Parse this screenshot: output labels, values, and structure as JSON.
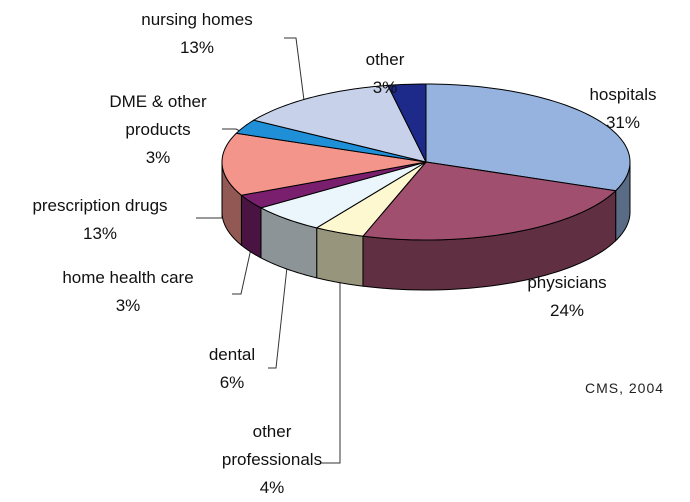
{
  "chart_data": {
    "type": "pie3d",
    "categories": [
      "hospitals",
      "physicians",
      "other professionals",
      "dental",
      "home health care",
      "prescription drugs",
      "DME & other products",
      "nursing homes",
      "other"
    ],
    "values": [
      31,
      24,
      4,
      6,
      3,
      13,
      3,
      13,
      3
    ],
    "value_labels": [
      "31%",
      "24%",
      "4%",
      "6%",
      "3%",
      "13%",
      "3%",
      "13%",
      "3%"
    ],
    "colors": [
      "#95b3de",
      "#a04f6e",
      "#fdf8d0",
      "#eaf6fb",
      "#7a1f6e",
      "#f4958c",
      "#1f8fd8",
      "#c7d2ea",
      "#1e2a8a"
    ],
    "source": "CMS, 2004"
  }
}
